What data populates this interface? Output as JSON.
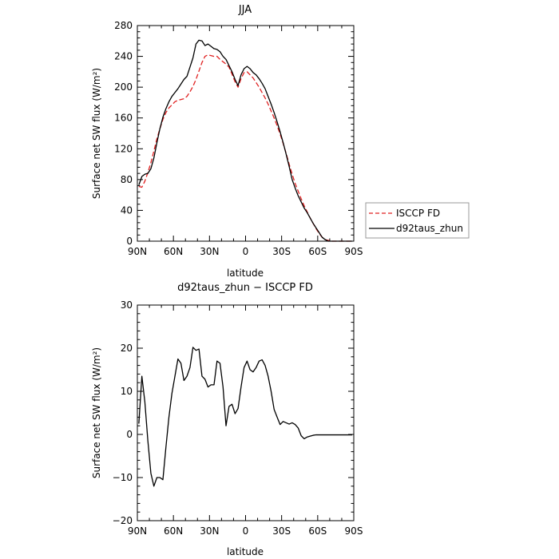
{
  "chart_data": [
    {
      "type": "line",
      "title": "JJA",
      "xlabel": "latitude",
      "ylabel": "Surface net SW flux (W/m²)",
      "xlim": [
        90,
        -90
      ],
      "ylim": [
        0,
        280
      ],
      "x_ticks": [
        90,
        60,
        30,
        0,
        -30,
        -60,
        -90
      ],
      "x_tick_labels": [
        "90N",
        "60N",
        "30N",
        "0",
        "30S",
        "60S",
        "90S"
      ],
      "y_ticks": [
        0,
        40,
        80,
        120,
        160,
        200,
        240,
        280
      ],
      "y_tick_labels": [
        "0",
        "40",
        "80",
        "120",
        "160",
        "200",
        "240",
        "280"
      ],
      "legend_position": "outside-right",
      "series": [
        {
          "name": "ISCCP FD",
          "color": "#e02020",
          "dash": "dashed",
          "x": [
            88.75,
            86.25,
            83.75,
            81.25,
            78.75,
            76.25,
            73.75,
            71.25,
            68.75,
            66.25,
            63.75,
            61.25,
            58.75,
            56.25,
            53.75,
            51.25,
            48.75,
            46.25,
            43.75,
            41.25,
            38.75,
            36.25,
            33.75,
            31.25,
            28.75,
            26.25,
            23.75,
            21.25,
            18.75,
            16.25,
            13.75,
            11.25,
            8.75,
            6.25,
            3.75,
            1.25,
            -1.25,
            -3.75,
            -6.25,
            -8.75,
            -11.25,
            -13.75,
            -16.25,
            -18.75,
            -21.25,
            -23.75,
            -26.25,
            -28.75,
            -31.25,
            -33.75,
            -36.25,
            -38.75,
            -41.25,
            -43.75,
            -46.25,
            -48.75,
            -51.25,
            -53.75,
            -56.25,
            -58.75,
            -61.25,
            -63.75,
            -66.25,
            -68.75,
            -71.25,
            -73.75,
            -76.25,
            -78.75,
            -81.25,
            -83.75,
            -86.25,
            -88.75
          ],
          "y": [
            71,
            70,
            78,
            89,
            102,
            117,
            133,
            146,
            158,
            167,
            173,
            177,
            181,
            183,
            184,
            185,
            188,
            194,
            201,
            210,
            221,
            232,
            240,
            242,
            241,
            240,
            240,
            236,
            233,
            230,
            226,
            217,
            207,
            200,
            211,
            219,
            220,
            216,
            212,
            206,
            200,
            193,
            186,
            178,
            169,
            160,
            150,
            139,
            127,
            114,
            100,
            87,
            75,
            65,
            55,
            46,
            38,
            30,
            23,
            16,
            10,
            5,
            2,
            1,
            0,
            0,
            0,
            0,
            0,
            0,
            0,
            0
          ]
        },
        {
          "name": "d92taus_zhun",
          "color": "#000000",
          "dash": "solid",
          "x": [
            88.75,
            86.25,
            83.75,
            81.25,
            78.75,
            76.25,
            73.75,
            71.25,
            68.75,
            66.25,
            63.75,
            61.25,
            58.75,
            56.25,
            53.75,
            51.25,
            48.75,
            46.25,
            43.75,
            41.25,
            38.75,
            36.25,
            33.75,
            31.25,
            28.75,
            26.25,
            23.75,
            21.25,
            18.75,
            16.25,
            13.75,
            11.25,
            8.75,
            6.25,
            3.75,
            1.25,
            -1.25,
            -3.75,
            -6.25,
            -8.75,
            -11.25,
            -13.75,
            -16.25,
            -18.75,
            -21.25,
            -23.75,
            -26.25,
            -28.75,
            -31.25,
            -33.75,
            -36.25,
            -38.75,
            -41.25,
            -43.75,
            -46.25,
            -48.75,
            -51.25,
            -53.75,
            -56.25,
            -58.75,
            -61.25,
            -63.75,
            -66.25,
            -68.75,
            -71.25,
            -73.75,
            -76.25,
            -78.75,
            -81.25,
            -83.75,
            -86.25,
            -88.75
          ],
          "y": [
            73,
            84,
            87,
            88,
            94,
            108,
            128,
            146,
            161,
            172,
            181,
            188,
            193,
            198,
            204,
            210,
            214,
            226,
            238,
            256,
            261,
            260,
            254,
            256,
            253,
            250,
            249,
            246,
            240,
            236,
            228,
            220,
            210,
            202,
            216,
            224,
            227,
            224,
            219,
            216,
            211,
            205,
            198,
            188,
            178,
            167,
            155,
            142,
            128,
            113,
            97,
            80,
            69,
            59,
            51,
            43,
            37,
            30,
            23,
            17,
            11,
            5,
            2,
            0,
            0,
            0,
            0,
            0,
            0,
            0,
            0,
            0
          ]
        }
      ]
    },
    {
      "type": "line",
      "title": "d92taus_zhun − ISCCP FD",
      "xlabel": "latitude",
      "ylabel": "Surface net SW flux (W/m²)",
      "xlim": [
        90,
        -90
      ],
      "ylim": [
        -20,
        30
      ],
      "x_ticks": [
        90,
        60,
        30,
        0,
        -30,
        -60,
        -90
      ],
      "x_tick_labels": [
        "90N",
        "60N",
        "30N",
        "0",
        "30S",
        "60S",
        "90S"
      ],
      "y_ticks": [
        -20,
        -10,
        0,
        10,
        20,
        30
      ],
      "y_tick_labels": [
        "−20",
        "−10",
        "0",
        "10",
        "20",
        "30"
      ],
      "series": [
        {
          "color": "#000000",
          "dash": "solid",
          "x": [
            88.75,
            86.25,
            83.75,
            81.25,
            78.75,
            76.25,
            73.75,
            71.25,
            68.75,
            66.25,
            63.75,
            61.25,
            58.75,
            56.25,
            53.75,
            51.25,
            48.75,
            46.25,
            43.75,
            41.25,
            38.75,
            36.25,
            33.75,
            31.25,
            28.75,
            26.25,
            23.75,
            21.25,
            18.75,
            16.25,
            13.75,
            11.25,
            8.75,
            6.25,
            3.75,
            1.25,
            -1.25,
            -3.75,
            -6.25,
            -8.75,
            -11.25,
            -13.75,
            -16.25,
            -18.75,
            -21.25,
            -23.75,
            -26.25,
            -28.75,
            -31.25,
            -33.75,
            -36.25,
            -38.75,
            -41.25,
            -43.75,
            -46.25,
            -48.75,
            -51.25,
            -53.75,
            -56.25,
            -58.75,
            -61.25,
            -63.75,
            -66.25,
            -68.75,
            -71.25,
            -73.75,
            -76.25,
            -78.75,
            -81.25,
            -83.75,
            -86.25,
            -88.75
          ],
          "y": [
            2.5,
            13.5,
            7.5,
            -1.5,
            -9,
            -12,
            -10,
            -10,
            -10.5,
            -3,
            4,
            9.5,
            13.5,
            17.5,
            16.5,
            12.5,
            13.5,
            15.5,
            20.2,
            19.5,
            19.8,
            13.5,
            12.8,
            11,
            11.5,
            11.5,
            17,
            16.5,
            11,
            2,
            6.5,
            7,
            4.8,
            6,
            11,
            15.5,
            17,
            15,
            14.5,
            15.5,
            17,
            17.3,
            16,
            13.5,
            10,
            5.8,
            4,
            2.3,
            3,
            2.7,
            2.4,
            2.7,
            2.3,
            1.5,
            -0.3,
            -1,
            -0.6,
            -0.4,
            -0.2,
            -0.1,
            -0.1,
            -0.1,
            -0.1,
            -0.1,
            -0.1,
            -0.1,
            -0.1,
            -0.1,
            -0.1,
            -0.1,
            -0.1,
            -0.1
          ]
        }
      ]
    }
  ]
}
